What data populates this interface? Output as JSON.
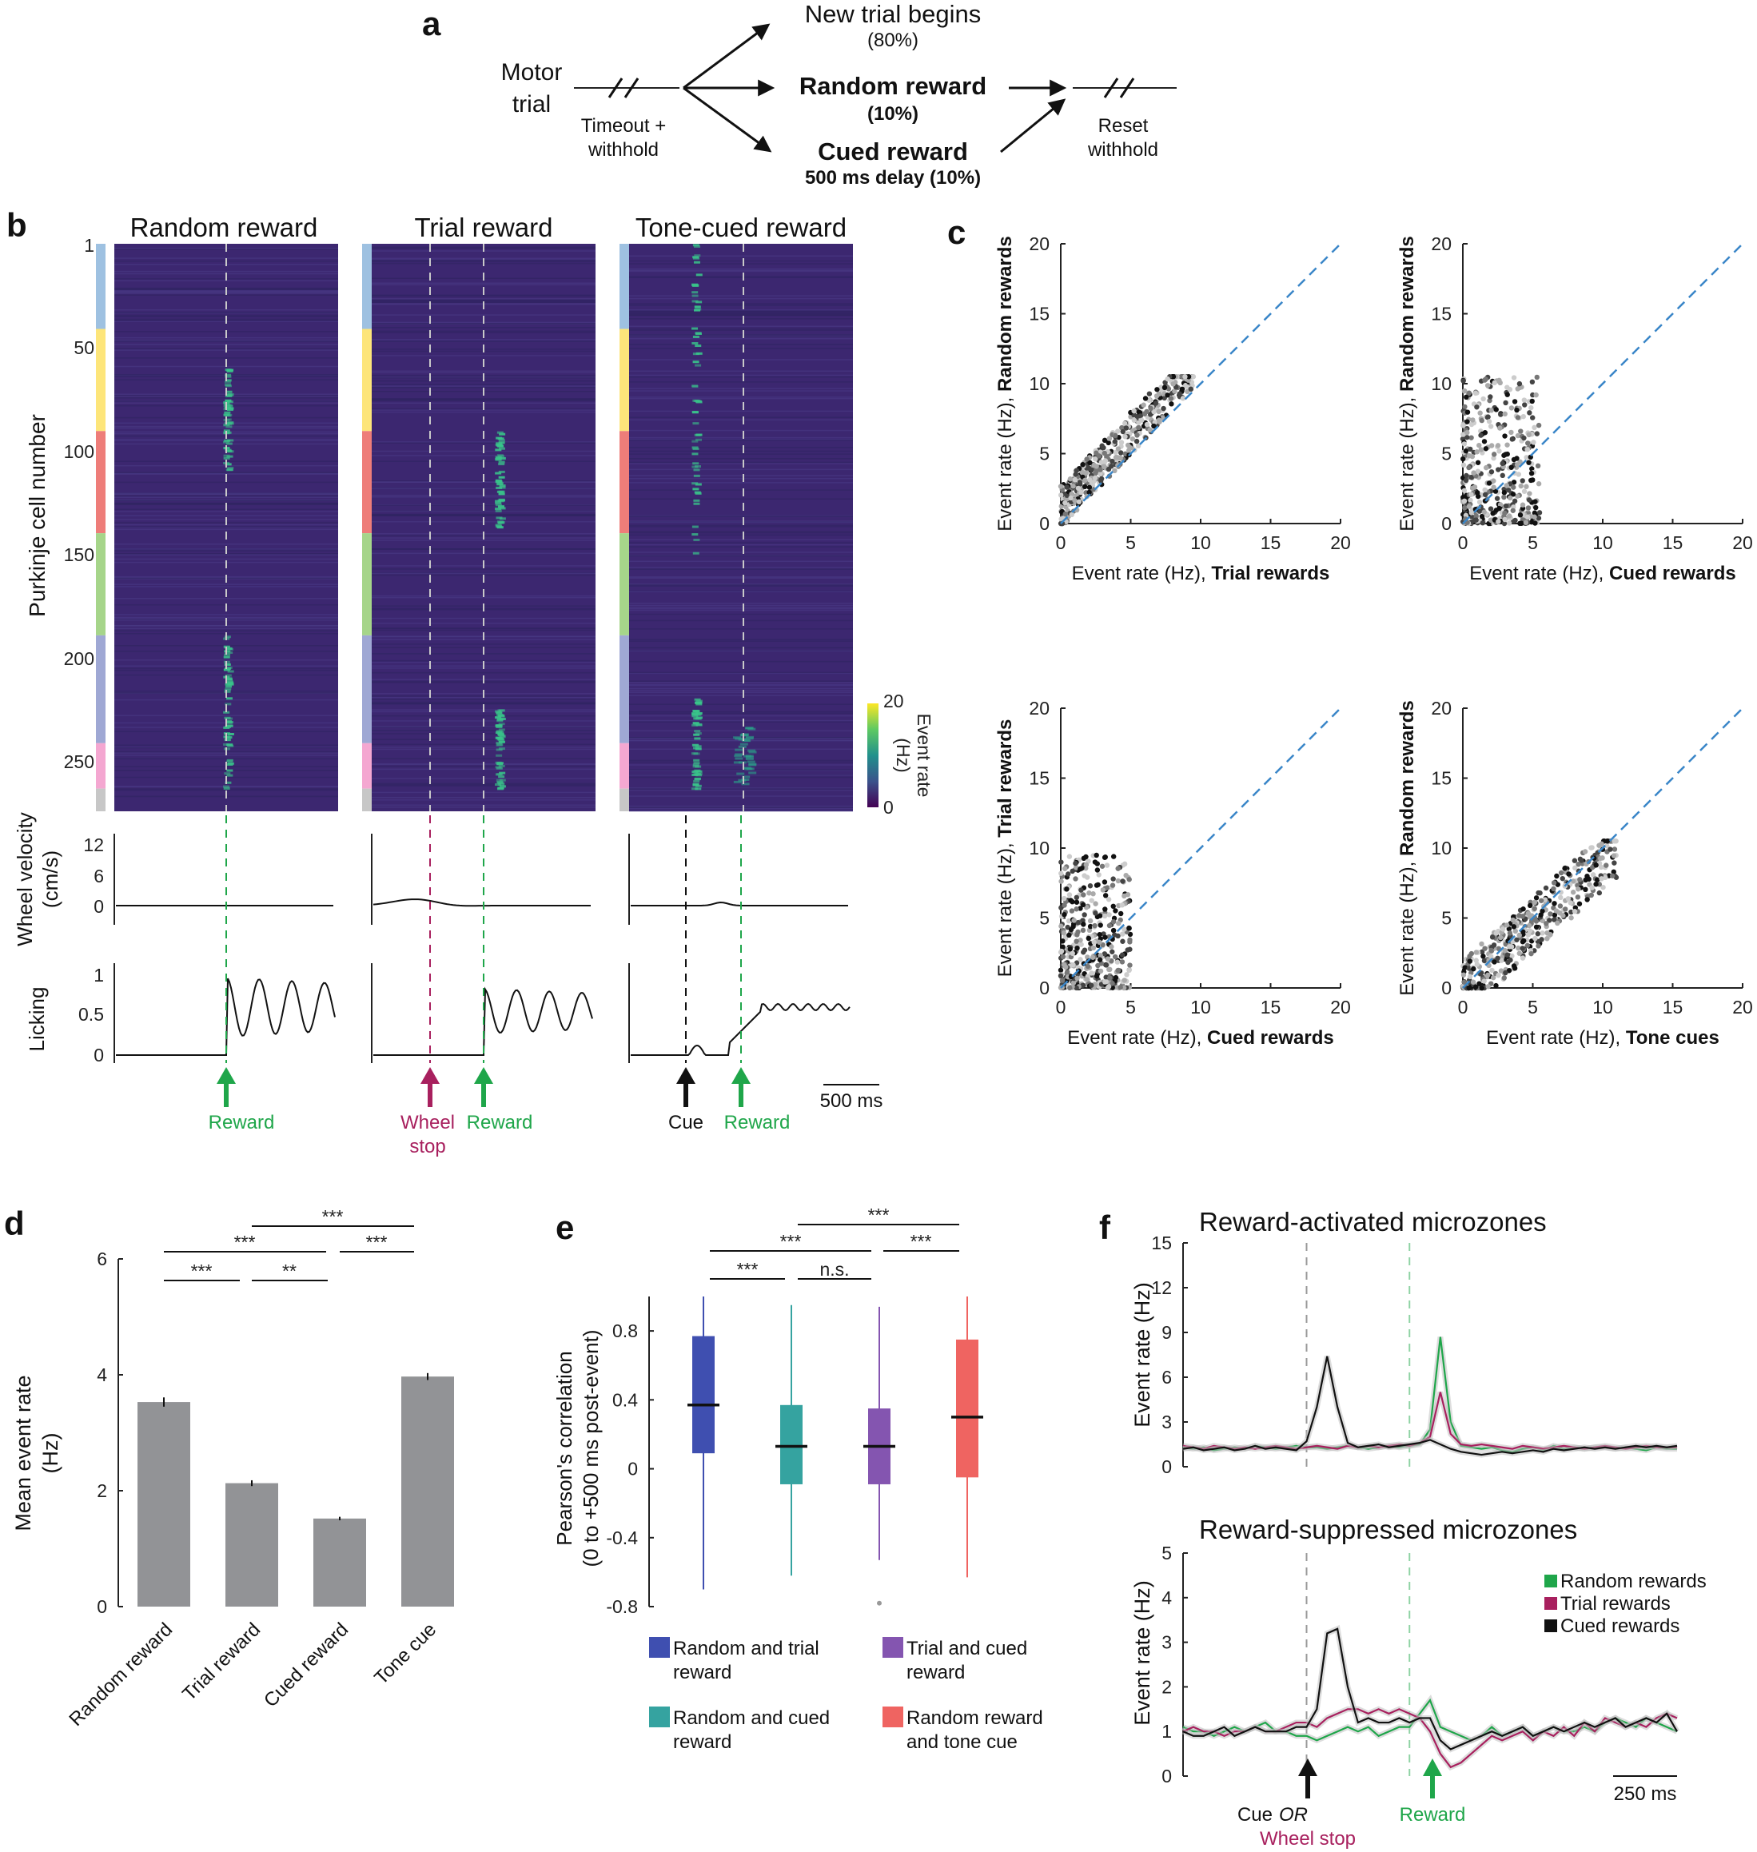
{
  "colors": {
    "green": "#1fa64a",
    "magenta": "#a8205e",
    "black": "#111111",
    "blue_dash": "#3a86c8",
    "bar": "#929396",
    "box_blue": "#3f4fb0",
    "box_teal": "#35a3a0",
    "box_purple": "#8455b0",
    "box_red": "#ef6461",
    "hm_bg": "#3c2770",
    "hm_hi": "#39c48a",
    "microzone": [
      "#9ec1e1",
      "#fde57a",
      "#ee7d79",
      "#a6d58a",
      "#9fa8d4",
      "#f4a7d1",
      "#c7c7c7"
    ]
  },
  "panel_a": {
    "label": "a",
    "motor": "Motor",
    "trial": "trial",
    "timeout": "Timeout +",
    "withhold": "withhold",
    "new_trial": "New trial begins",
    "new_trial_pct": "(80%)",
    "random_reward": "Random reward",
    "random_pct": "(10%)",
    "cued_reward": "Cued reward",
    "cued_delay": "500 ms delay (10%)",
    "reset": "Reset",
    "reset_withhold": "withhold"
  },
  "panel_b": {
    "label": "b",
    "titles": [
      "Random reward",
      "Trial reward",
      "Tone-cued reward"
    ],
    "ylabel": "Purkinje cell number",
    "yticks": [
      "1",
      "50",
      "100",
      "150",
      "200",
      "250"
    ],
    "colorbar_max": "20",
    "colorbar_min": "0",
    "colorbar_label": "Event rate",
    "colorbar_unit": "(Hz)",
    "velocity_label": "Wheel velocity",
    "velocity_unit": "(cm/s)",
    "velocity_ticks": [
      "12",
      "6",
      "0"
    ],
    "licking_label": "Licking",
    "licking_ticks": [
      "1",
      "0.5",
      "0"
    ],
    "markers": {
      "reward": "Reward",
      "wheel": "Wheel",
      "stop": "stop",
      "cue": "Cue"
    },
    "scalebar": "500 ms"
  },
  "panel_c": {
    "label": "c",
    "ticks": [
      "0",
      "5",
      "10",
      "15",
      "20"
    ],
    "plots": [
      {
        "x_pre": "Event rate (Hz), ",
        "x_bold": "Trial rewards",
        "y_pre": "Event rate (Hz), ",
        "y_bold": "Random rewards"
      },
      {
        "x_pre": "Event rate (Hz), ",
        "x_bold": "Cued rewards",
        "y_pre": "Event rate (Hz), ",
        "y_bold": "Random rewards"
      },
      {
        "x_pre": "Event rate (Hz), ",
        "x_bold": "Cued rewards",
        "y_pre": "Event rate (Hz), ",
        "y_bold": "Trial rewards"
      },
      {
        "x_pre": "Event rate (Hz), ",
        "x_bold": "Tone cues",
        "y_pre": "Event rate (Hz), ",
        "y_bold": "Random rewards"
      }
    ]
  },
  "panel_d": {
    "label": "d",
    "ylabel": "Mean event rate",
    "yunit": "(Hz)",
    "yticks": [
      "0",
      "2",
      "4",
      "6"
    ],
    "sig": {
      "s1": "***",
      "s2": "**",
      "s3": "***",
      "s4": "***",
      "s5": "***"
    }
  },
  "panel_e": {
    "label": "e",
    "ylabel": "Pearson's correlation",
    "ylabel2": "(0 to +500 ms post-event)",
    "yticks": [
      "0.8",
      "0.4",
      "0",
      "-0.4",
      "-0.8"
    ],
    "sig": {
      "s1": "***",
      "s2": "n.s.",
      "s3": "***",
      "s4": "***",
      "s5": "***"
    },
    "legend": [
      {
        "l1": "Random and trial",
        "l2": "reward"
      },
      {
        "l1": "Trial and cued",
        "l2": "reward"
      },
      {
        "l1": "Random and cued",
        "l2": "reward"
      },
      {
        "l1": "Random reward",
        "l2": "and tone cue"
      }
    ]
  },
  "panel_f": {
    "label": "f",
    "title_top": "Reward-activated microzones",
    "title_bottom": "Reward-suppressed microzones",
    "ylabel": "Event rate (Hz)",
    "yticks_top": [
      "15",
      "12",
      "9",
      "6",
      "3",
      "0"
    ],
    "yticks_bottom": [
      "5",
      "4",
      "3",
      "2",
      "1",
      "0"
    ],
    "legend": [
      "Random rewards",
      "Trial rewards",
      "Cued rewards"
    ],
    "cue": "Cue",
    "or": "OR",
    "wheel_stop": "Wheel stop",
    "reward": "Reward",
    "scalebar": "250 ms"
  },
  "chart_data": [
    {
      "type": "bar",
      "title": "",
      "categories": [
        "Random reward",
        "Trial reward",
        "Cued reward",
        "Tone cue"
      ],
      "values": [
        3.53,
        2.13,
        1.52,
        3.97
      ],
      "errors": [
        0.08,
        0.05,
        0.03,
        0.06
      ],
      "xlabel": "",
      "ylabel": "Mean event rate (Hz)",
      "ylim": [
        0,
        6
      ]
    },
    {
      "type": "box",
      "title": "",
      "categories": [
        "Random and trial reward",
        "Random and cued reward",
        "Trial and cued reward",
        "Random reward and tone cue"
      ],
      "boxes": [
        {
          "median": 0.37,
          "q1": 0.09,
          "q3": 0.77,
          "min": -0.7,
          "max": 1.0
        },
        {
          "median": 0.13,
          "q1": -0.09,
          "q3": 0.37,
          "min": -0.62,
          "max": 0.95
        },
        {
          "median": 0.13,
          "q1": -0.09,
          "q3": 0.35,
          "min": -0.53,
          "max": 0.94,
          "outlier": -0.78
        },
        {
          "median": 0.3,
          "q1": -0.05,
          "q3": 0.75,
          "min": -0.63,
          "max": 1.0
        }
      ],
      "ylabel": "Pearson's correlation (0 to +500 ms post-event)",
      "ylim": [
        -0.8,
        1.0
      ]
    },
    {
      "type": "line",
      "title": "Reward-activated microzones",
      "x_ms": [
        -600,
        -550,
        -500,
        -450,
        -400,
        -350,
        -300,
        -250,
        -200,
        -150,
        -100,
        -50,
        0,
        50,
        100,
        150,
        200,
        250,
        300,
        350,
        400,
        450,
        500,
        550,
        600,
        650,
        700,
        750,
        800,
        850,
        900,
        950,
        1000,
        1050,
        1100,
        1150,
        1200,
        1250,
        1300,
        1350,
        1400,
        1450,
        1500,
        1550,
        1600,
        1650,
        1700,
        1750,
        1800
      ],
      "series": [
        {
          "name": "Random rewards",
          "values": [
            1.3,
            1.2,
            1.3,
            1.1,
            1.2,
            1.3,
            1.2,
            1.4,
            1.3,
            1.2,
            1.3,
            1.4,
            1.3,
            1.3,
            1.2,
            1.3,
            1.4,
            1.3,
            1.2,
            1.3,
            1.4,
            1.3,
            1.4,
            1.5,
            2.5,
            8.7,
            3.0,
            1.4,
            1.3,
            1.2,
            1.3,
            1.1,
            1.0,
            1.2,
            1.3,
            1.1,
            1.4,
            1.2,
            1.3,
            1.2,
            1.3,
            1.3,
            1.2,
            1.3,
            1.2,
            1.1,
            1.3,
            1.2,
            1.2
          ]
        },
        {
          "name": "Trial rewards",
          "values": [
            1.4,
            1.3,
            1.2,
            1.4,
            1.3,
            1.2,
            1.3,
            1.2,
            1.3,
            1.4,
            1.3,
            1.2,
            1.3,
            1.4,
            1.3,
            1.2,
            1.4,
            1.3,
            1.4,
            1.3,
            1.4,
            1.5,
            1.4,
            1.6,
            2.0,
            5.0,
            2.2,
            1.5,
            1.4,
            1.5,
            1.4,
            1.3,
            1.2,
            1.4,
            1.3,
            1.2,
            1.3,
            1.4,
            1.3,
            1.2,
            1.3,
            1.4,
            1.3,
            1.2,
            1.3,
            1.4,
            1.3,
            1.3,
            1.3
          ]
        },
        {
          "name": "Cued rewards",
          "values": [
            1.2,
            1.3,
            1.1,
            1.2,
            1.3,
            1.1,
            1.2,
            1.4,
            1.2,
            1.3,
            1.2,
            1.1,
            1.7,
            4.0,
            7.4,
            4.0,
            1.6,
            1.3,
            1.4,
            1.5,
            1.3,
            1.4,
            1.5,
            1.6,
            1.8,
            1.5,
            1.2,
            1.0,
            0.9,
            0.8,
            0.9,
            1.0,
            0.9,
            1.0,
            1.1,
            1.0,
            1.2,
            1.1,
            1.2,
            1.3,
            1.2,
            1.3,
            1.2,
            1.3,
            1.4,
            1.3,
            1.4,
            1.3,
            1.4
          ]
        }
      ],
      "cue_ms": 0,
      "reward_ms": 500,
      "ylabel": "Event rate (Hz)",
      "ylim": [
        0,
        15
      ]
    },
    {
      "type": "line",
      "title": "Reward-suppressed microzones",
      "x_ms": [
        -600,
        -550,
        -500,
        -450,
        -400,
        -350,
        -300,
        -250,
        -200,
        -150,
        -100,
        -50,
        0,
        50,
        100,
        150,
        200,
        250,
        300,
        350,
        400,
        450,
        500,
        550,
        600,
        650,
        700,
        750,
        800,
        850,
        900,
        950,
        1000,
        1050,
        1100,
        1150,
        1200,
        1250,
        1300,
        1350,
        1400,
        1450,
        1500,
        1550,
        1600,
        1650,
        1700,
        1750,
        1800
      ],
      "series": [
        {
          "name": "Random rewards",
          "values": [
            1.1,
            1.0,
            1.0,
            0.9,
            1.0,
            1.1,
            1.0,
            1.1,
            1.2,
            1.0,
            1.0,
            0.9,
            0.9,
            0.8,
            0.9,
            1.0,
            1.1,
            1.0,
            1.1,
            0.9,
            1.0,
            1.1,
            1.1,
            1.4,
            1.7,
            1.1,
            1.0,
            0.9,
            0.8,
            0.9,
            1.1,
            0.9,
            1.0,
            1.1,
            0.9,
            1.0,
            1.1,
            1.0,
            1.0,
            1.1,
            1.0,
            1.2,
            1.3,
            1.2,
            1.1,
            1.3,
            1.2,
            1.1,
            1.0
          ]
        },
        {
          "name": "Trial rewards",
          "values": [
            1.0,
            1.1,
            1.0,
            1.0,
            0.9,
            1.0,
            1.0,
            1.1,
            1.0,
            1.0,
            1.1,
            1.2,
            1.2,
            1.1,
            1.3,
            1.4,
            1.5,
            1.5,
            1.4,
            1.5,
            1.4,
            1.5,
            1.4,
            1.3,
            1.0,
            0.5,
            0.2,
            0.3,
            0.5,
            0.7,
            0.9,
            0.8,
            0.9,
            1.0,
            0.8,
            1.0,
            0.9,
            1.1,
            0.9,
            1.2,
            1.0,
            1.3,
            1.2,
            1.1,
            1.2,
            1.1,
            1.3,
            1.4,
            1.3
          ]
        },
        {
          "name": "Cued rewards",
          "values": [
            1.0,
            0.9,
            0.9,
            1.0,
            1.1,
            0.9,
            1.0,
            1.1,
            1.0,
            1.0,
            1.0,
            1.1,
            1.1,
            1.5,
            3.2,
            3.3,
            2.0,
            1.2,
            1.3,
            1.2,
            1.2,
            1.3,
            1.2,
            1.3,
            1.3,
            0.8,
            0.6,
            0.7,
            0.8,
            0.9,
            1.0,
            0.9,
            1.0,
            1.1,
            0.9,
            1.0,
            1.1,
            1.0,
            1.1,
            1.2,
            1.1,
            1.2,
            1.3,
            1.1,
            1.2,
            1.3,
            1.2,
            1.4,
            1.0
          ]
        }
      ],
      "cue_ms": 0,
      "reward_ms": 500,
      "ylabel": "Event rate (Hz)",
      "ylim": [
        0,
        5
      ]
    }
  ]
}
